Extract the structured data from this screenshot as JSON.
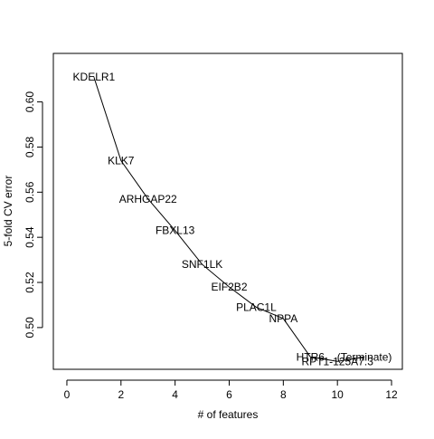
{
  "chart_data": {
    "type": "line",
    "title": "",
    "xlabel": "# of features",
    "ylabel": "5-fold CV error",
    "xlim": [
      -0.5,
      12.4
    ],
    "ylim": [
      0.4815,
      0.6215
    ],
    "xticks": [
      0,
      2,
      4,
      6,
      8,
      10,
      12
    ],
    "xtick_labels": [
      "0",
      "2",
      "4",
      "6",
      "8",
      "10",
      "12"
    ],
    "yticks": [
      0.5,
      0.52,
      0.54,
      0.56,
      0.58,
      0.6
    ],
    "ytick_labels": [
      "0.50",
      "0.52",
      "0.54",
      "0.56",
      "0.58",
      "0.60"
    ],
    "grid": false,
    "legend": "none",
    "series": [
      {
        "color": "#000000",
        "points": [
          {
            "x": 1,
            "y": 0.611,
            "label": "KDELR1"
          },
          {
            "x": 2,
            "y": 0.574,
            "label": "KLK7"
          },
          {
            "x": 3,
            "y": 0.557,
            "label": "ARHGAP22"
          },
          {
            "x": 4,
            "y": 0.543,
            "label": "FBXL13"
          },
          {
            "x": 5,
            "y": 0.528,
            "label": "SNF1LK"
          },
          {
            "x": 6,
            "y": 0.518,
            "label": "EIF2B2"
          },
          {
            "x": 7,
            "y": 0.509,
            "label": "PLAC1L"
          },
          {
            "x": 8,
            "y": 0.504,
            "label": "NPPA"
          },
          {
            "x": 9,
            "y": 0.487,
            "label": "HTR6"
          },
          {
            "x": 10,
            "y": 0.485,
            "label": "RPT1-125A7.3"
          },
          {
            "x": 11,
            "y": 0.487,
            "label": "(Terminate)"
          }
        ]
      }
    ]
  }
}
